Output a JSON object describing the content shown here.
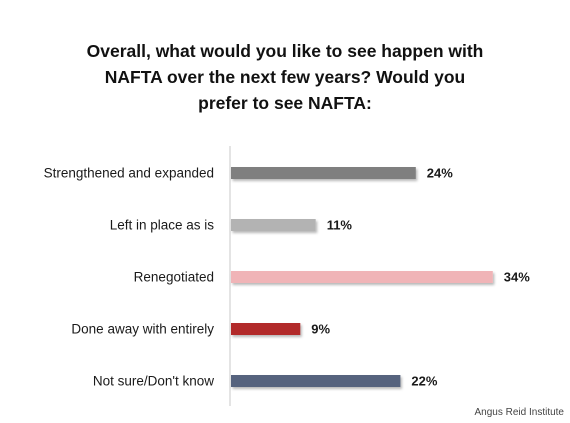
{
  "chart_data": {
    "type": "bar",
    "orientation": "horizontal",
    "title_lines": [
      "Overall, what would you like to see happen with",
      "NAFTA over the next few years? Would you",
      "prefer to see NAFTA:"
    ],
    "categories": [
      "Strengthened and expanded",
      "Left in place as is",
      "Renegotiated",
      "Done away with entirely",
      "Not sure/Don't know"
    ],
    "values": [
      24,
      11,
      34,
      9,
      22
    ],
    "value_labels": [
      "24%",
      "11%",
      "34%",
      "9%",
      "22%"
    ],
    "bar_colors": [
      "#7f7f7f",
      "#b3b3b3",
      "#f0b4b7",
      "#b22a2a",
      "#56637e"
    ],
    "xlim": [
      0,
      40
    ],
    "grid": false,
    "legend": "none"
  },
  "source": "Angus Reid Institute"
}
